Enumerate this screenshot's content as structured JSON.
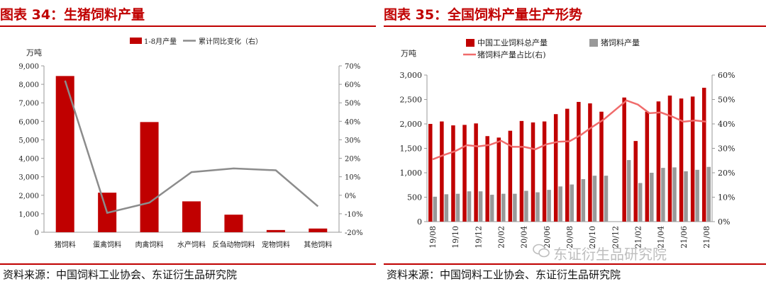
{
  "left": {
    "title": "图表 34：生猪饲料产量",
    "source": "资料来源：中国饲料工业协会、东证衍生品研究院",
    "colors": {
      "bar": "#c00000",
      "line": "#8c8c8c"
    },
    "chart_data": {
      "type": "bar",
      "title": "生猪饲料产量",
      "ylabel": "万吨",
      "ylim": [
        0,
        9000
      ],
      "yticks": [
        0,
        1000,
        2000,
        3000,
        4000,
        5000,
        6000,
        7000,
        8000,
        9000
      ],
      "ytick_labels": [
        "0",
        "1,000",
        "2,000",
        "3,000",
        "4,000",
        "5,000",
        "6,000",
        "7,000",
        "8,000",
        "9,000"
      ],
      "y2lim": [
        -20,
        70
      ],
      "y2ticks": [
        -20,
        -10,
        0,
        10,
        20,
        30,
        40,
        50,
        60,
        70
      ],
      "y2tick_labels": [
        "-20%",
        "-10%",
        "0%",
        "10%",
        "20%",
        "30%",
        "40%",
        "50%",
        "60%",
        "70%"
      ],
      "categories": [
        "猪饲料",
        "蛋禽饲料",
        "肉禽饲料",
        "水产饲料",
        "反刍动物饲料",
        "宠物饲料",
        "其他饲料"
      ],
      "series": [
        {
          "name": "1-8月产量",
          "type": "bar",
          "axis": "left",
          "values": [
            8450,
            2140,
            5960,
            1670,
            950,
            120,
            200
          ]
        },
        {
          "name": "累计同比变化（右）",
          "type": "line",
          "axis": "right",
          "values": [
            62,
            -9.5,
            -4,
            12.5,
            14.5,
            13.5,
            -6
          ]
        }
      ]
    }
  },
  "right": {
    "title": "图表 35：全国饲料产量生产形势",
    "source": "资料来源：中国饲料工业协会、东证衍生品研究院",
    "watermark": "东证衍生品研究院",
    "colors": {
      "bar1": "#c00000",
      "bar2": "#999999",
      "line": "#f06b6b"
    },
    "chart_data": {
      "type": "bar",
      "title": "全国饲料产量生产形势",
      "ylabel": "万吨",
      "ylim": [
        0,
        3000
      ],
      "yticks": [
        0,
        500,
        1000,
        1500,
        2000,
        2500,
        3000
      ],
      "ytick_labels": [
        "0",
        "500",
        "1,000",
        "1,500",
        "2,000",
        "2,500",
        "3,000"
      ],
      "y2lim": [
        0,
        60
      ],
      "y2ticks": [
        0,
        10,
        20,
        30,
        40,
        50,
        60
      ],
      "y2tick_labels": [
        "0%",
        "10%",
        "20%",
        "30%",
        "40%",
        "50%",
        "60%"
      ],
      "categories": [
        "19/08",
        "19/09",
        "19/10",
        "19/11",
        "19/12",
        "20/01",
        "20/02",
        "20/03",
        "20/04",
        "20/05",
        "20/06",
        "20/07",
        "20/08",
        "20/09",
        "20/10",
        "20/11",
        "20/12",
        "21/01",
        "21/02",
        "21/03",
        "21/04",
        "21/05",
        "21/06",
        "21/07",
        "21/08"
      ],
      "xtick_labels": [
        "19/08",
        "",
        "19/10",
        "",
        "19/12",
        "",
        "20/02",
        "",
        "20/04",
        "",
        "20/06",
        "",
        "20/08",
        "",
        "20/10",
        "",
        "20/12",
        "",
        "21/02",
        "",
        "21/04",
        "",
        "21/06",
        "",
        "21/08"
      ],
      "series": [
        {
          "name": "中国工业饲料总产量",
          "type": "bar",
          "axis": "left",
          "values": [
            2000,
            2050,
            1970,
            1980,
            2010,
            1750,
            1720,
            1860,
            2060,
            2030,
            2050,
            2200,
            2310,
            2450,
            2420,
            2250,
            null,
            2540,
            1650,
            2250,
            2460,
            2580,
            2520,
            2560,
            2740
          ]
        },
        {
          "name": "猪饲料产量",
          "type": "bar",
          "axis": "left",
          "values": [
            510,
            560,
            570,
            620,
            620,
            550,
            570,
            570,
            630,
            600,
            650,
            720,
            760,
            870,
            940,
            940,
            null,
            1260,
            790,
            1000,
            1100,
            1110,
            1030,
            1060,
            1120
          ]
        },
        {
          "name": "猪饲料产量占比(右)",
          "type": "line",
          "axis": "right",
          "values": [
            25.5,
            27.3,
            28.9,
            31.3,
            30.8,
            31.4,
            33.1,
            30.6,
            30.6,
            29.6,
            31.7,
            32.7,
            32.9,
            35.5,
            38.8,
            41.8,
            null,
            49.6,
            47.9,
            44.4,
            44.7,
            43.0,
            40.9,
            41.4,
            40.9
          ]
        }
      ]
    }
  }
}
